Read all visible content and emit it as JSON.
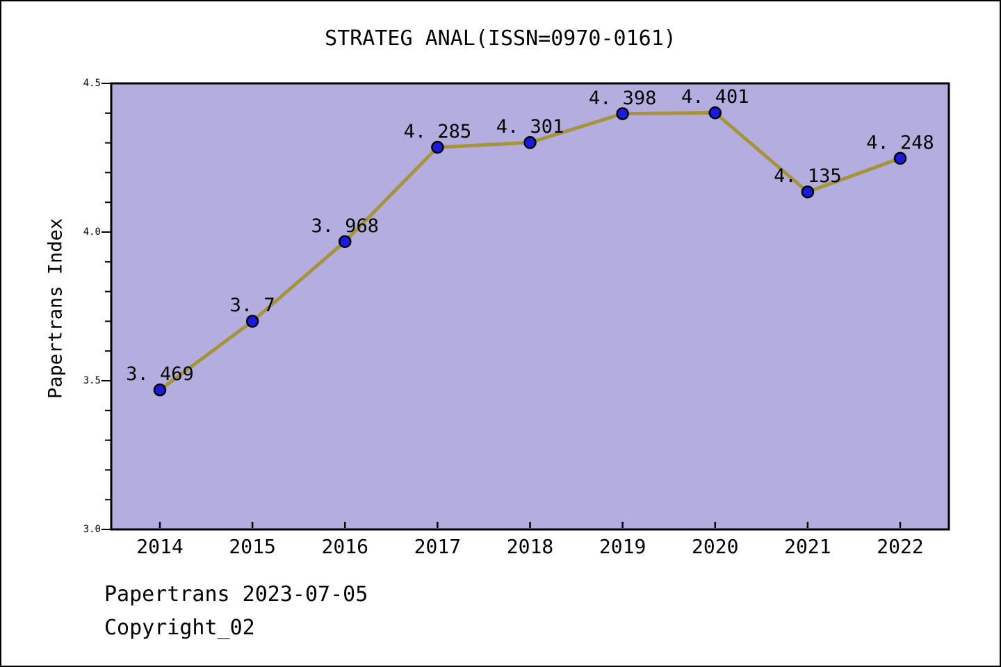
{
  "window": {
    "background": "#ffffff",
    "border_color": "#000000"
  },
  "chart_data": {
    "type": "line",
    "title": "STRATEG ANAL(ISSN=0970-0161)",
    "ylabel": "Papertrans Index",
    "xlabel": "",
    "categories": [
      "2014",
      "2015",
      "2016",
      "2017",
      "2018",
      "2019",
      "2020",
      "2021",
      "2022"
    ],
    "series": [
      {
        "name": "Papertrans Index",
        "values": [
          3.469,
          3.7,
          3.968,
          4.285,
          4.301,
          4.398,
          4.401,
          4.135,
          4.248
        ],
        "point_labels": [
          "3.469",
          "3.7",
          "3.968",
          "4.285",
          "4.301",
          "4.398",
          "4.401",
          "4.135",
          "4.248"
        ]
      }
    ],
    "ylim": [
      3.0,
      4.5
    ],
    "y_major_ticks": [
      "3.0",
      "3.5",
      "4.0",
      "4.5"
    ],
    "y_minor_step": 0.1,
    "grid": false,
    "legend": null,
    "colors": {
      "plot_background": "#b4aee0",
      "line": "#a6943a",
      "marker_fill": "#1b1be0",
      "marker_edge": "#000000",
      "axis": "#000000",
      "text": "#000000"
    }
  },
  "footer": {
    "line1": "Papertrans 2023-07-05",
    "line2": "Copyright_02"
  }
}
